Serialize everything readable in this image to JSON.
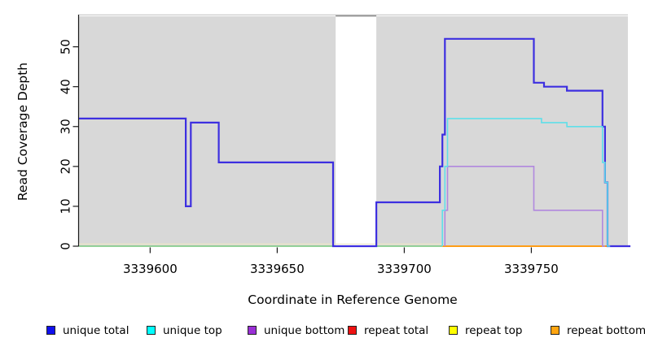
{
  "chart_data": {
    "type": "line",
    "subtype": "step-after-coverage-plot",
    "title": "",
    "xlabel": "Coordinate in Reference Genome",
    "ylabel": "Read Coverage Depth",
    "x_ticks": [
      3339600,
      3339650,
      3339700,
      3339750
    ],
    "y_ticks": [
      0,
      10,
      20,
      30,
      40,
      50
    ],
    "xlim": [
      3339572,
      3339788
    ],
    "ylim": [
      0,
      57.5
    ],
    "grid": "off",
    "plot_bg_color": "#d8d8d8",
    "masked_region": {
      "x_start": 3339673,
      "x_end": 3339689,
      "fill": "#ffffff",
      "cap_color": "#8d8d8d"
    },
    "top_border_color": "#c6c6c6",
    "axis_color": "#1a1a1a",
    "series": [
      {
        "name": "zero baseline (unlabeled)",
        "color": "#77c77c",
        "width": 1.6,
        "x_end": 3339715,
        "points": [
          [
            3339572,
            0
          ]
        ]
      },
      {
        "name": "repeat top",
        "color": "#eee8c2",
        "width": 1.2,
        "x_end": 3339715,
        "points": [
          [
            3339572,
            0.55
          ]
        ]
      },
      {
        "name": "repeat bottom",
        "color": "#ff9d17",
        "width": 2,
        "x_end": 3339780,
        "points": [
          [
            3339715,
            0
          ]
        ]
      },
      {
        "name": "repeat total",
        "color": "#ee1111",
        "width": 1.6,
        "x_end": null,
        "points": []
      },
      {
        "name": "unique bottom",
        "color": "#b188de",
        "width": 1.6,
        "x_end": 3339779,
        "points": [
          [
            3339716,
            0
          ],
          [
            3339716,
            9
          ],
          [
            3339717,
            20
          ],
          [
            3339751,
            9
          ],
          [
            3339778,
            0
          ]
        ]
      },
      {
        "name": "unique total",
        "color": "#3d2fe0",
        "width": 2.2,
        "x_end": 3339789,
        "points": [
          [
            3339572,
            32
          ],
          [
            3339614,
            10
          ],
          [
            3339616,
            31
          ],
          [
            3339627,
            21
          ],
          [
            3339672,
            0
          ],
          [
            3339689,
            11
          ],
          [
            3339714,
            20
          ],
          [
            3339715,
            28
          ],
          [
            3339716,
            52
          ],
          [
            3339751,
            41
          ],
          [
            3339755,
            40
          ],
          [
            3339764,
            39
          ],
          [
            3339778,
            30
          ],
          [
            3339779,
            16
          ],
          [
            3339780,
            0
          ]
        ]
      },
      {
        "name": "unique top",
        "color": "#5fdfe9",
        "width": 1.6,
        "x_end": 3339781,
        "points": [
          [
            3339715,
            0
          ],
          [
            3339715,
            9
          ],
          [
            3339716,
            20
          ],
          [
            3339717,
            32
          ],
          [
            3339754,
            31
          ],
          [
            3339764,
            30
          ],
          [
            3339778,
            21
          ],
          [
            3339779,
            16
          ],
          [
            3339780,
            0
          ]
        ]
      }
    ],
    "legend": [
      {
        "label": "unique total",
        "color": "#1010ee"
      },
      {
        "label": "unique top",
        "color": "#00ffff"
      },
      {
        "label": "unique bottom",
        "color": "#9a2fd6"
      },
      {
        "label": "repeat total",
        "color": "#ee1111"
      },
      {
        "label": "repeat top",
        "color": "#ffff00"
      },
      {
        "label": "repeat bottom",
        "color": "#ffa510"
      }
    ],
    "legend_position": "bottom"
  }
}
